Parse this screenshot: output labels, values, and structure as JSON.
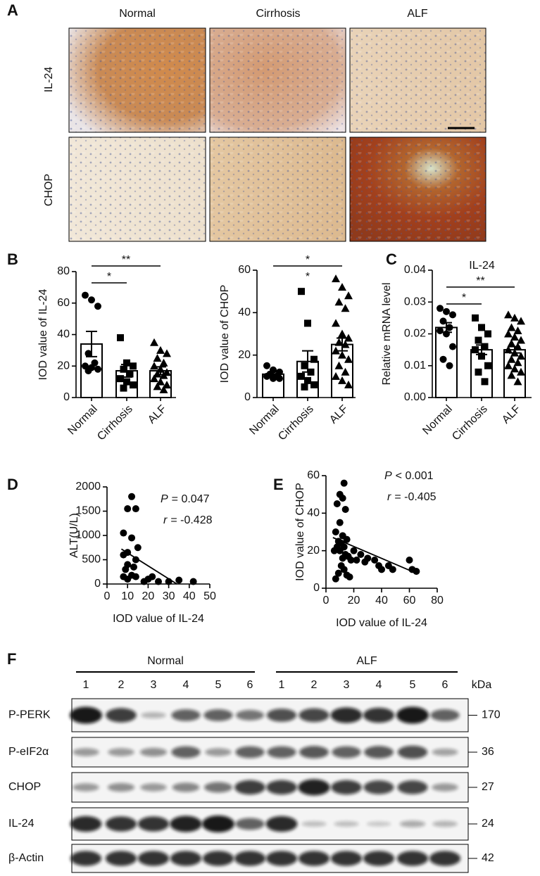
{
  "panel_labels": [
    "A",
    "B",
    "C",
    "D",
    "E",
    "F"
  ],
  "histology": {
    "columns": [
      "Normal",
      "Cirrhosis",
      "ALF"
    ],
    "rows": [
      "IL-24",
      "CHOP"
    ]
  },
  "chart_data": [
    {
      "type": "bar",
      "ylabel": "IOD value of IL-24",
      "categories": [
        "Normal",
        "Cirrhosis",
        "ALF"
      ],
      "values": [
        34,
        17,
        17
      ],
      "errors": [
        8,
        4,
        2.5
      ],
      "points": [
        [
          65,
          62,
          58,
          28,
          22,
          20,
          19,
          18,
          17
        ],
        [
          38,
          22,
          20,
          18,
          15,
          12,
          10,
          8,
          6
        ],
        [
          35,
          30,
          28,
          25,
          22,
          20,
          18,
          16,
          15,
          14,
          12,
          10,
          8,
          7,
          5
        ]
      ],
      "markers": [
        "circle",
        "square",
        "triangle"
      ],
      "color": "#000000",
      "ylim": [
        0,
        80
      ],
      "yticks": [
        0,
        20,
        40,
        60,
        80
      ],
      "significance": [
        {
          "between": [
            "Normal",
            "ALF"
          ],
          "label": "**"
        },
        {
          "between": [
            "Normal",
            "Cirrhosis"
          ],
          "label": "*"
        }
      ]
    },
    {
      "type": "bar",
      "ylabel": "IOD value of CHOP",
      "categories": [
        "Normal",
        "Cirrhosis",
        "ALF"
      ],
      "values": [
        11,
        17,
        25
      ],
      "errors": [
        1,
        5,
        3
      ],
      "points": [
        [
          15,
          13,
          12,
          11,
          10,
          10,
          9,
          9
        ],
        [
          50,
          35,
          18,
          15,
          12,
          10,
          8,
          6,
          5
        ],
        [
          56,
          52,
          48,
          45,
          42,
          35,
          30,
          28,
          26,
          25,
          22,
          20,
          18,
          15,
          12,
          10,
          8,
          6
        ]
      ],
      "markers": [
        "circle",
        "square",
        "triangle"
      ],
      "color": "#000000",
      "ylim": [
        0,
        60
      ],
      "yticks": [
        0,
        20,
        40,
        60
      ],
      "significance": [
        {
          "between": [
            "Normal",
            "ALF"
          ],
          "label": "*"
        },
        {
          "between": [
            "Cirrhosis"
          ],
          "label": "*"
        }
      ]
    },
    {
      "type": "bar",
      "title": "IL-24",
      "ylabel": "Relative mRNA level",
      "categories": [
        "Normal",
        "Cirrhosis",
        "ALF"
      ],
      "values": [
        0.022,
        0.015,
        0.015
      ],
      "errors": [
        0.0015,
        0.0015,
        0.001
      ],
      "points": [
        [
          0.028,
          0.027,
          0.026,
          0.024,
          0.022,
          0.021,
          0.02,
          0.016,
          0.012,
          0.01
        ],
        [
          0.025,
          0.022,
          0.02,
          0.018,
          0.016,
          0.015,
          0.013,
          0.01,
          0.008,
          0.005
        ],
        [
          0.026,
          0.025,
          0.024,
          0.022,
          0.021,
          0.02,
          0.019,
          0.018,
          0.017,
          0.016,
          0.015,
          0.014,
          0.013,
          0.012,
          0.011,
          0.01,
          0.009,
          0.008,
          0.007,
          0.005
        ]
      ],
      "markers": [
        "circle",
        "square",
        "triangle"
      ],
      "color": "#000000",
      "ylim": [
        0,
        0.04
      ],
      "yticks": [
        {
          "value": 0,
          "label": "0.00"
        },
        0.01,
        0.02,
        0.03,
        0.04
      ],
      "significance": [
        {
          "between": [
            "Normal",
            "ALF"
          ],
          "label": "**"
        },
        {
          "between": [
            "Normal",
            "Cirrhosis"
          ],
          "label": "*"
        }
      ]
    },
    {
      "type": "scatter",
      "xlabel": "IOD value of IL-24",
      "ylabel": "ALT(U/L)",
      "x": [
        12,
        10,
        14,
        8,
        12,
        8,
        10,
        15,
        14,
        10,
        13,
        8,
        10,
        12,
        14,
        20,
        22,
        25,
        30,
        35,
        42,
        18,
        9
      ],
      "y": [
        1800,
        1550,
        1550,
        1050,
        950,
        600,
        650,
        750,
        500,
        400,
        350,
        150,
        100,
        180,
        150,
        100,
        150,
        50,
        50,
        80,
        50,
        50,
        300
      ],
      "fit": {
        "x": [
          7,
          34
        ],
        "y": [
          720,
          0
        ]
      },
      "color": "#000000",
      "xlim": [
        0,
        50
      ],
      "xticks": [
        0,
        10,
        20,
        30,
        40,
        50
      ],
      "ylim": [
        0,
        2000
      ],
      "yticks": [
        0,
        500,
        1000,
        1500,
        2000
      ],
      "annotations": [
        {
          "symbol": "P",
          "text": "= 0.047"
        },
        {
          "symbol": "r",
          "text": "= -0.428"
        }
      ]
    },
    {
      "type": "scatter",
      "xlabel": "IOD value of IL-24",
      "ylabel": "IOD value of CHOP",
      "x": [
        13,
        10,
        12,
        8,
        14,
        10,
        7,
        12,
        15,
        9,
        11,
        13,
        8,
        10,
        6,
        14,
        16,
        12,
        18,
        20,
        22,
        25,
        28,
        30,
        35,
        38,
        40,
        45,
        48,
        60,
        62,
        65,
        11,
        9,
        17,
        7,
        13,
        15
      ],
      "y": [
        56,
        50,
        48,
        45,
        42,
        35,
        30,
        28,
        26,
        25,
        24,
        22,
        22,
        20,
        20,
        18,
        17,
        16,
        15,
        20,
        15,
        18,
        14,
        16,
        15,
        12,
        10,
        12,
        10,
        15,
        10,
        9,
        12,
        8,
        6,
        5,
        10,
        7
      ],
      "fit": {
        "x": [
          5,
          65
        ],
        "y": [
          27,
          8
        ]
      },
      "color": "#000000",
      "xlim": [
        0,
        80
      ],
      "xticks": [
        0,
        20,
        40,
        60,
        80
      ],
      "ylim": [
        0,
        60
      ],
      "yticks": [
        0,
        20,
        40,
        60
      ],
      "annotations": [
        {
          "symbol": "P",
          "text": "< 0.001"
        },
        {
          "symbol": "r",
          "text": "= -0.405"
        }
      ]
    }
  ],
  "western_blot": {
    "groups": [
      {
        "name": "Normal",
        "lanes": [
          1,
          2,
          3,
          4,
          5,
          6
        ]
      },
      {
        "name": "ALF",
        "lanes": [
          1,
          2,
          3,
          4,
          5,
          6
        ]
      }
    ],
    "unit": "kDa",
    "rows": [
      {
        "name": "P-PERK",
        "kda": 170
      },
      {
        "name": "P-eIF2α",
        "kda": 36
      },
      {
        "name": "CHOP",
        "kda": 27
      },
      {
        "name": "IL-24",
        "kda": 24
      },
      {
        "name": "β-Actin",
        "kda": 42
      }
    ]
  }
}
